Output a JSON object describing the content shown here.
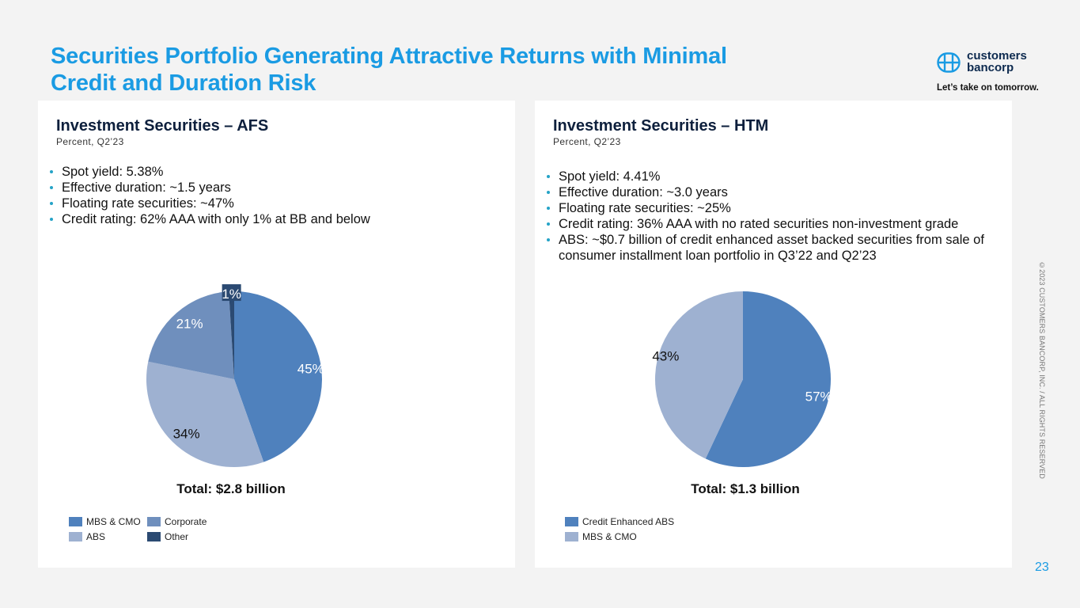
{
  "slide": {
    "title_line1": "Securities Portfolio Generating Attractive Returns with Minimal",
    "title_line2": "Credit and Duration Risk",
    "page_number": "23",
    "copyright": "©2023 CUSTOMERS BANCORP, INC. / ALL RIGHTS RESERVED",
    "accent_color": "#1a9be3"
  },
  "logo": {
    "name_line1": "customers",
    "name_line2": "bancorp",
    "tagline": "Let’s take on tomorrow.",
    "icon": "bancorp-logo-icon"
  },
  "afs": {
    "title": "Investment Securities – AFS",
    "subtitle": "Percent, Q2’23",
    "bullets": [
      "Spot yield: 5.38%",
      "Effective duration: ~1.5 years",
      "Floating rate securities: ~47%",
      "Credit rating: 62% AAA with only 1% at BB and below"
    ],
    "total": "Total: $2.8 billion",
    "legend": [
      "MBS & CMO",
      "Corporate",
      "ABS",
      "Other"
    ]
  },
  "htm": {
    "title": "Investment Securities – HTM",
    "subtitle": "Percent, Q2’23",
    "bullets": [
      "Spot yield: 4.41%",
      "Effective duration: ~3.0 years",
      "Floating rate securities: ~25%",
      "Credit rating: 36% AAA with no rated securities non-investment grade",
      "ABS: ~$0.7 billion of credit enhanced asset backed securities from sale of consumer installment loan portfolio in Q3’22 and Q2’23"
    ],
    "total": "Total: $1.3 billion",
    "legend": [
      "Credit Enhanced ABS",
      "MBS & CMO"
    ]
  },
  "chart_data": [
    {
      "type": "pie",
      "title": "Investment Securities – AFS",
      "subtitle": "Percent, Q2’23",
      "categories": [
        "MBS & CMO",
        "ABS",
        "Corporate",
        "Other"
      ],
      "values": [
        45,
        34,
        21,
        1
      ],
      "labels": [
        "45%",
        "34%",
        "21%",
        "1%"
      ],
      "colors": [
        "#4f81bd",
        "#9eb1d1",
        "#6f8fbd",
        "#2b4a72"
      ],
      "label_colors": [
        "#ffffff",
        "#111111",
        "#ffffff",
        "#ffffff"
      ],
      "start": "12 o'clock, clockwise",
      "total": "Total: $2.8 billion",
      "legend": "bottom-left"
    },
    {
      "type": "pie",
      "title": "Investment Securities – HTM",
      "subtitle": "Percent, Q2’23",
      "categories": [
        "Credit Enhanced ABS",
        "MBS & CMO"
      ],
      "values": [
        57,
        43
      ],
      "labels": [
        "57%",
        "43%"
      ],
      "colors": [
        "#4f81bd",
        "#9eb1d1"
      ],
      "label_colors": [
        "#ffffff",
        "#111111"
      ],
      "start": "12 o'clock, clockwise",
      "total": "Total: $1.3 billion",
      "legend": "bottom-left"
    }
  ]
}
